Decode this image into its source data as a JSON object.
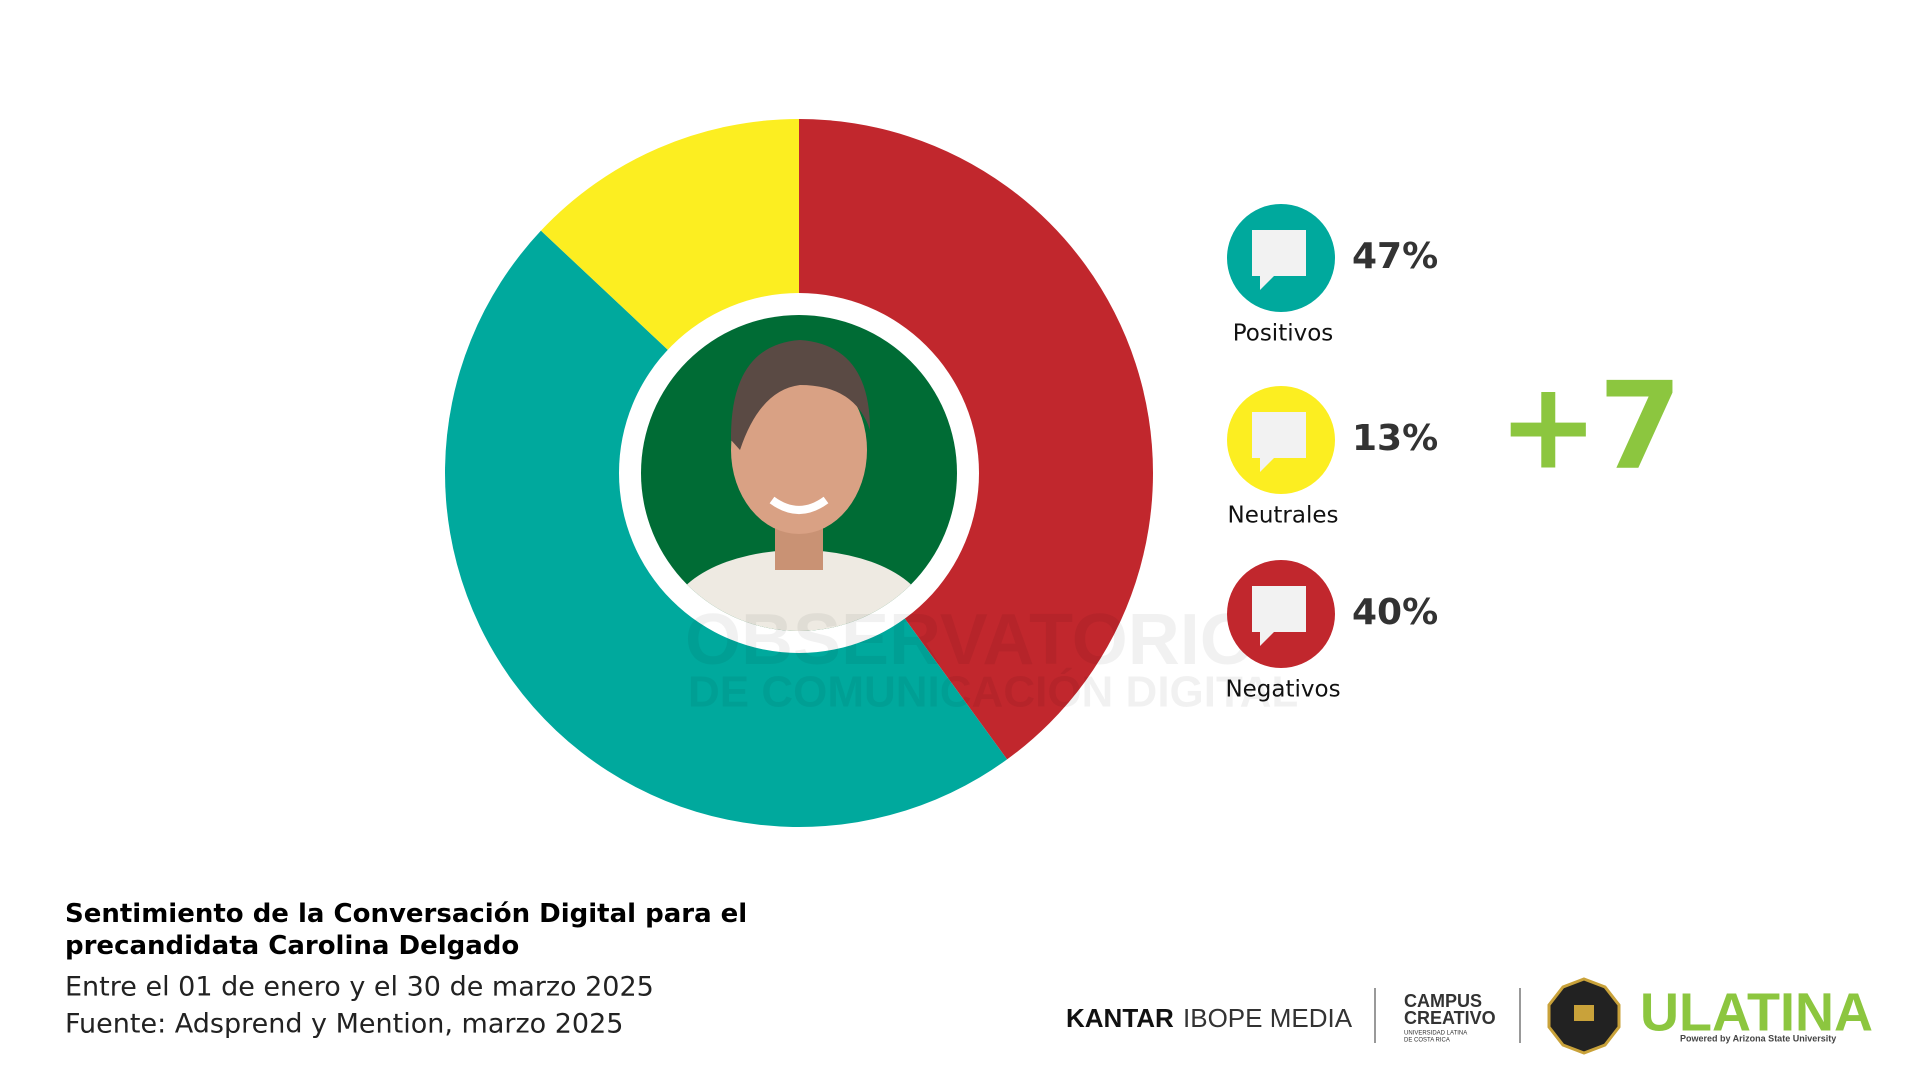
{
  "chart_data": {
    "type": "donut",
    "title": "Sentimiento de la Conversación Digital para el precandidata Carolina Delgado",
    "subtitle": [
      "Entre el 01 de enero y el 30 de marzo 2025",
      "Fuente: Adsprend y Mention, marzo 2025"
    ],
    "categories": [
      "Positivos",
      "Neutrales",
      "Negativos"
    ],
    "values": [
      47,
      13,
      40
    ],
    "value_labels": [
      "47%",
      "13%",
      "40%"
    ],
    "colors": [
      "#00a99d",
      "#fcee21",
      "#c1272d"
    ],
    "annotation": "+7"
  },
  "watermark": [
    "OBSERVATORIO",
    "DE COMUNICACIÓN DIGITAL"
  ],
  "logos": {
    "kantar": [
      "KANTAR",
      "IBOPE MEDIA"
    ],
    "campus": [
      "CAMPUS",
      "CREATIVO",
      "UNIVERSIDAD LATINA",
      "DE COSTA RICA"
    ],
    "ulatina": [
      "ULATINA",
      "Powered by Arizona State University"
    ]
  }
}
